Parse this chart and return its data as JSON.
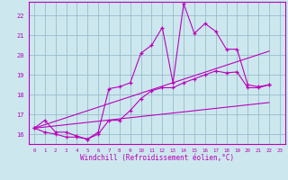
{
  "bg_color": "#cce8ee",
  "grid_color": "#99bbcc",
  "line_color": "#bb00bb",
  "xlabel": "Windchill (Refroidissement éolien,°C)",
  "xlim": [
    -0.5,
    23.5
  ],
  "ylim": [
    15.5,
    22.7
  ],
  "yticks": [
    16,
    17,
    18,
    19,
    20,
    21,
    22
  ],
  "xticks": [
    0,
    1,
    2,
    3,
    4,
    5,
    6,
    7,
    8,
    9,
    10,
    11,
    12,
    13,
    14,
    15,
    16,
    17,
    18,
    19,
    20,
    21,
    22,
    23
  ],
  "series": [
    {
      "x": [
        0,
        1,
        2,
        3,
        4,
        5,
        6,
        7,
        8,
        9,
        10,
        11,
        12,
        13,
        14,
        15,
        16,
        17,
        18,
        19,
        20,
        21,
        22
      ],
      "y": [
        16.3,
        16.7,
        16.1,
        16.1,
        15.9,
        15.75,
        16.1,
        18.3,
        18.4,
        18.6,
        20.1,
        20.5,
        21.4,
        18.6,
        22.6,
        21.1,
        21.6,
        21.2,
        20.3,
        20.3,
        18.5,
        18.4,
        18.5
      ],
      "marker": true
    },
    {
      "x": [
        0,
        1,
        2,
        3,
        4,
        5,
        6,
        7,
        8,
        9,
        10,
        11,
        12,
        13,
        14,
        15,
        16,
        17,
        18,
        19,
        20,
        21,
        22
      ],
      "y": [
        16.3,
        16.1,
        16.0,
        15.85,
        15.85,
        15.75,
        16.0,
        16.7,
        16.7,
        17.2,
        17.8,
        18.2,
        18.35,
        18.35,
        18.6,
        18.8,
        19.0,
        19.2,
        19.1,
        19.15,
        18.35,
        18.35,
        18.5
      ],
      "marker": true
    },
    {
      "x": [
        0,
        22
      ],
      "y": [
        16.3,
        17.6
      ],
      "marker": false
    },
    {
      "x": [
        0,
        22
      ],
      "y": [
        16.3,
        20.2
      ],
      "marker": false
    }
  ]
}
